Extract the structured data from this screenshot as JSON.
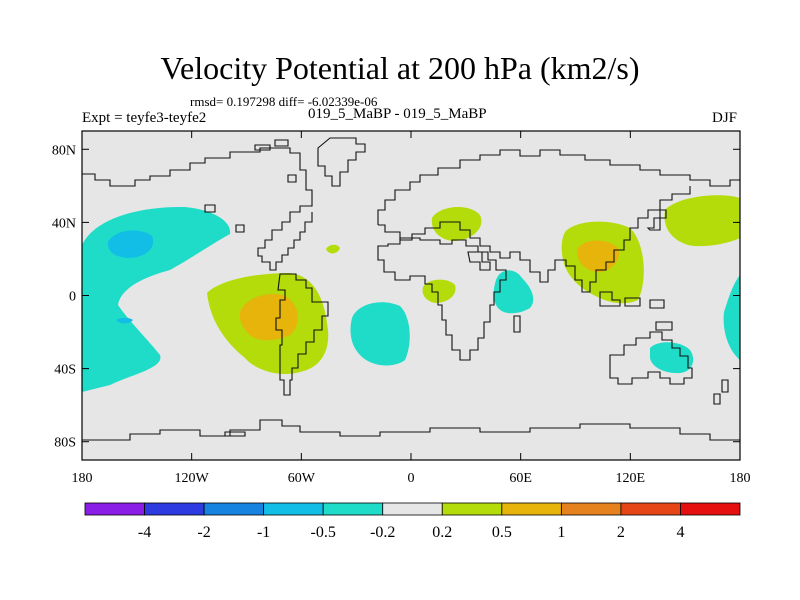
{
  "chart_data": {
    "type": "contour_map",
    "title": "Velocity Potential at 200 hPa (km2/s)",
    "stats_label": "rmsd= 0.197298 diff= -6.02339e-06",
    "experiment_label": "Expt = teyfe3-teyfe2",
    "experiment_names": "019_5_MaBP - 019_5_MaBP",
    "season": "DJF",
    "x_ticks": [
      "180",
      "120W",
      "60W",
      "0",
      "60E",
      "120E",
      "180"
    ],
    "x_tick_values": [
      -180,
      -120,
      -60,
      0,
      60,
      120,
      180
    ],
    "y_ticks": [
      "80N",
      "40N",
      "0",
      "40S",
      "80S"
    ],
    "y_tick_values": [
      80,
      40,
      0,
      -40,
      -80
    ],
    "xlim": [
      -180,
      180
    ],
    "ylim": [
      -90,
      90
    ],
    "colorbar_labels": [
      "-4",
      "-2",
      "-1",
      "-0.5",
      "-0.2",
      "0.2",
      "0.5",
      "1",
      "2",
      "4"
    ],
    "colorbar_colors": [
      "#8b1ee6",
      "#2d3be0",
      "#1683e0",
      "#12bde6",
      "#1edcc8",
      "#e6e6e6",
      "#b4dc0a",
      "#e6b40a",
      "#e6821e",
      "#e64616",
      "#e60f0f"
    ],
    "background_color": "#e6e6e6",
    "regions": [
      {
        "name": "north-pacific-negative",
        "level": "-0.5..-0.2",
        "lon": -160,
        "lat": 30
      },
      {
        "name": "north-pacific-core",
        "level": "-1..-0.5",
        "lon": -165,
        "lat": 30
      },
      {
        "name": "south-america-positive",
        "level": "0.2..0.5",
        "lon": -60,
        "lat": -12
      },
      {
        "name": "south-america-core",
        "level": "0.5..1",
        "lon": -65,
        "lat": -12
      },
      {
        "name": "south-atlantic-negative",
        "level": "-0.5..-0.2",
        "lon": -15,
        "lat": -25
      },
      {
        "name": "north-africa-positive",
        "level": "0.2..0.5",
        "lon": 30,
        "lat": 42
      },
      {
        "name": "africa-positive",
        "level": "0.2..0.5",
        "lon": 15,
        "lat": 2
      },
      {
        "name": "tiny-positive",
        "level": "0.2..0.5",
        "lon": -40,
        "lat": 25
      },
      {
        "name": "east-africa-negative",
        "level": "-0.5..-0.2",
        "lon": 57,
        "lat": -2
      },
      {
        "name": "east-asia-positive",
        "level": "0.2..0.5",
        "lon": 100,
        "lat": 22
      },
      {
        "name": "east-asia-core",
        "level": "0.5..1",
        "lon": 98,
        "lat": 25
      },
      {
        "name": "north-pacific-positive",
        "level": "0.2..0.5",
        "lon": 150,
        "lat": 40
      },
      {
        "name": "australia-negative",
        "level": "-0.5..-0.2",
        "lon": 140,
        "lat": -32
      },
      {
        "name": "east-edge-negative",
        "level": "-0.5..-0.2",
        "lon": 178,
        "lat": -15
      },
      {
        "name": "pacific-tail-negative",
        "level": "-0.5..-0.2",
        "lon": -150,
        "lat": -30
      }
    ]
  }
}
